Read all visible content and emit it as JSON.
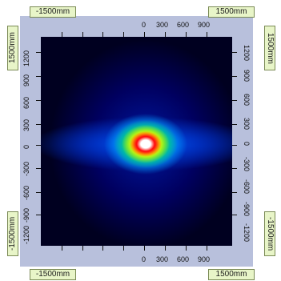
{
  "corner_labels": {
    "top_left": "-1500mm",
    "top_right": "1500mm",
    "bottom_left": "-1500mm",
    "bottom_right": "1500mm"
  },
  "side_labels": {
    "left_top": "1500mm",
    "right_top": "1500mm",
    "left_bottom": "-1500mm",
    "right_bottom": "-1500mm"
  },
  "top_axis_ticks": [
    "0",
    "300",
    "600",
    "900"
  ],
  "bottom_axis_ticks": [
    "0",
    "300",
    "600",
    "900"
  ],
  "left_axis_ticks": [
    "1200",
    "900",
    "600",
    "300",
    "0",
    "-300",
    "-600",
    "-900",
    "-1200"
  ],
  "right_axis_ticks": [
    "1200",
    "900",
    "600",
    "300",
    "0",
    "-300",
    "-600",
    "-900",
    "-1200"
  ],
  "colors": {
    "frame_band": "#b8c0dc",
    "label_bg": "#e8f5c8",
    "plot_bg": "#000018",
    "hot_spot": "#ffffff"
  }
}
